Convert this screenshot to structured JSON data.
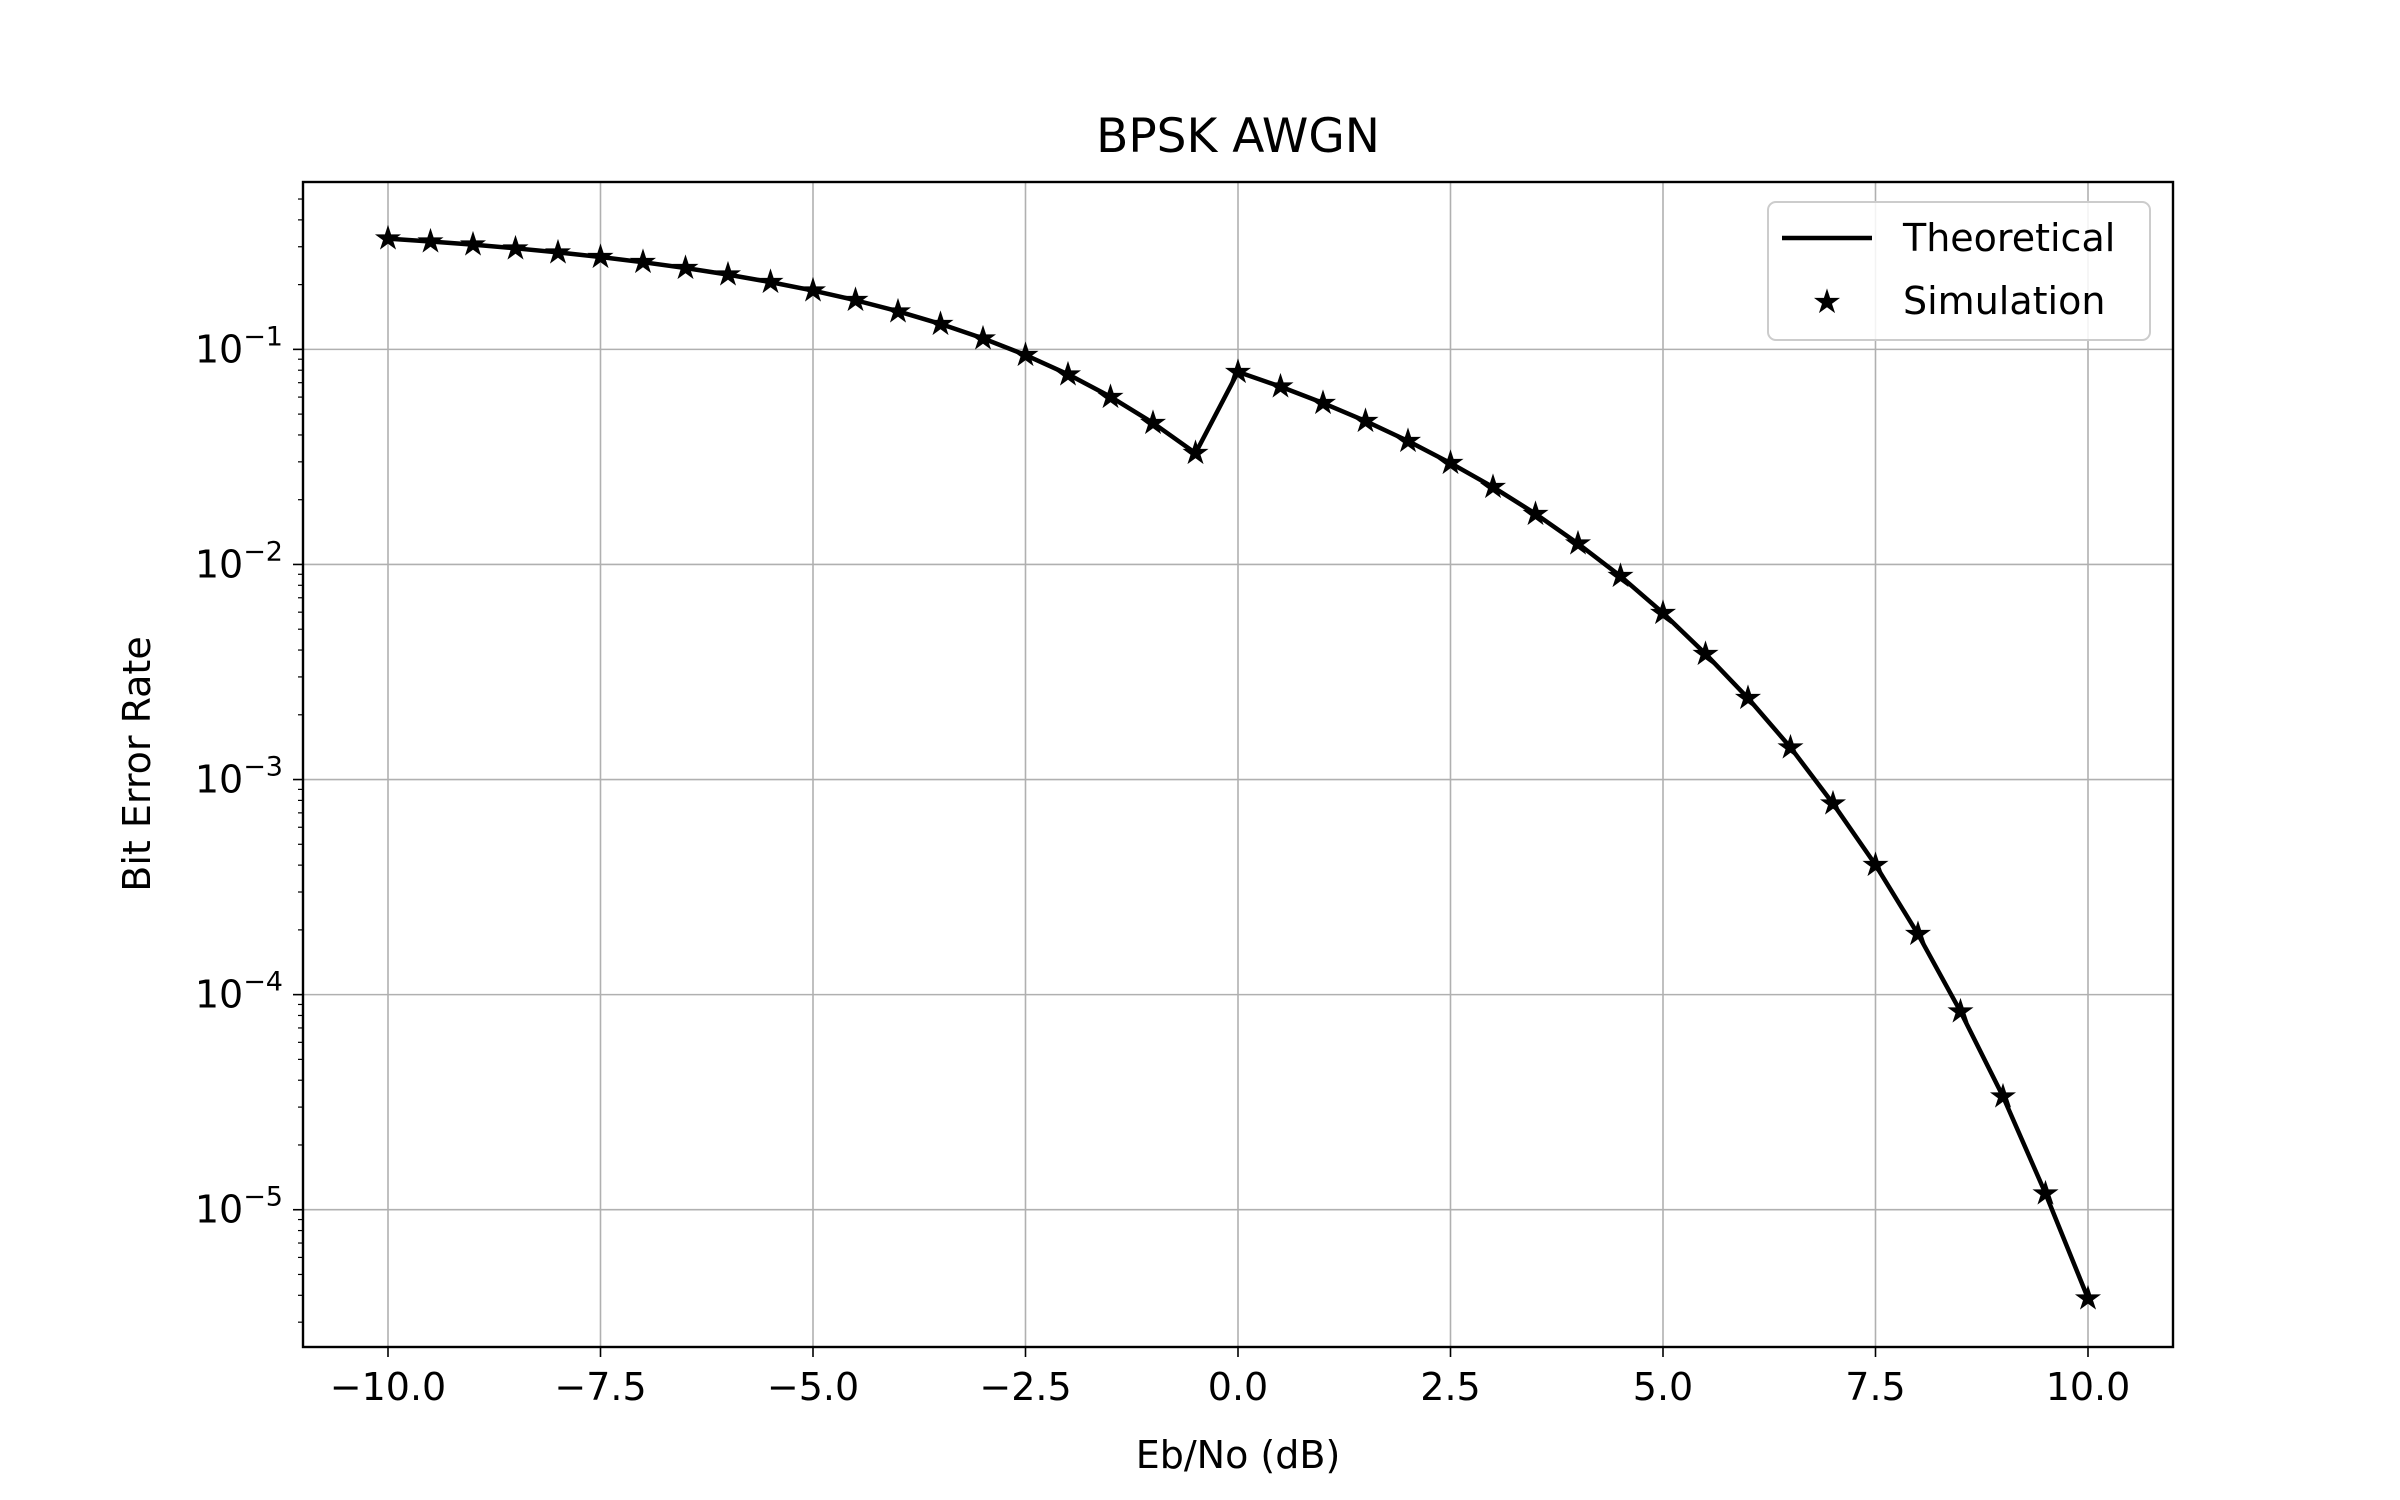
{
  "chart_data": {
    "type": "line",
    "title": "BPSK AWGN",
    "xlabel": "Eb/No (dB)",
    "ylabel": "Bit Error Rate",
    "yscale": "log",
    "xlim": [
      -11,
      11
    ],
    "ylim": [
      2.3e-06,
      0.6
    ],
    "grid": true,
    "legend_position": "top-right",
    "x_ticks": [
      -10,
      -7.5,
      -5,
      -2.5,
      0,
      2.5,
      5,
      7.5,
      10
    ],
    "x_tick_labels": [
      "−10.0",
      "−7.5",
      "−5.0",
      "−2.5",
      "0.0",
      "2.5",
      "5.0",
      "7.5",
      "10.0"
    ],
    "y_ticks": [
      {
        "value": 0.1,
        "base": "10",
        "exponent": "−1"
      },
      {
        "value": 0.01,
        "base": "10",
        "exponent": "−2"
      },
      {
        "value": 0.001,
        "base": "10",
        "exponent": "−3"
      },
      {
        "value": 0.0001,
        "base": "10",
        "exponent": "−4"
      },
      {
        "value": 1e-05,
        "base": "10",
        "exponent": "−5"
      }
    ],
    "x": [
      -10,
      -9.5,
      -9,
      -8.5,
      -8,
      -7.5,
      -7,
      -6.5,
      -6,
      -5.5,
      -5,
      -4.5,
      -4,
      -3.5,
      -3,
      -2.5,
      -2,
      -1.5,
      -1,
      -0.5,
      0,
      0.5,
      1,
      1.5,
      2,
      2.5,
      3,
      3.5,
      4,
      4.5,
      5,
      5.5,
      6,
      6.5,
      7,
      7.5,
      8,
      8.5,
      9,
      9.5,
      10
    ],
    "series": [
      {
        "name": "Theoretical",
        "style": "line",
        "color": "#000000",
        "values": [
          0.3274,
          0.3175,
          0.3067,
          0.295,
          0.2824,
          0.2688,
          0.2543,
          0.2389,
          0.2225,
          0.2054,
          0.1876,
          0.1692,
          0.1503,
          0.1313,
          0.1125,
          0.0941,
          0.0766,
          0.0602,
          0.0455,
          0.0329,
          0.0786,
          0.0671,
          0.0563,
          0.0464,
          0.0375,
          0.0296,
          0.0229,
          0.0172,
          0.0125,
          0.00882,
          0.00595,
          0.00384,
          0.00239,
          0.00141,
          0.000773,
          0.000401,
          0.000191,
          8.34e-05,
          3.36e-05,
          1.19e-05,
          3.87e-06
        ]
      },
      {
        "name": "Simulation",
        "style": "marker",
        "marker": "star",
        "color": "#000000",
        "values": [
          0.3274,
          0.3175,
          0.3067,
          0.295,
          0.2824,
          0.2688,
          0.2543,
          0.2389,
          0.2225,
          0.2054,
          0.1876,
          0.1692,
          0.1503,
          0.1313,
          0.1125,
          0.0941,
          0.0766,
          0.0602,
          0.0455,
          0.0329,
          0.0786,
          0.0671,
          0.0563,
          0.0464,
          0.0375,
          0.0296,
          0.0229,
          0.0172,
          0.0125,
          0.00882,
          0.00595,
          0.00384,
          0.00239,
          0.00141,
          0.000773,
          0.000401,
          0.000191,
          8.34e-05,
          3.36e-05,
          1.19e-05,
          3.87e-06
        ]
      }
    ]
  }
}
